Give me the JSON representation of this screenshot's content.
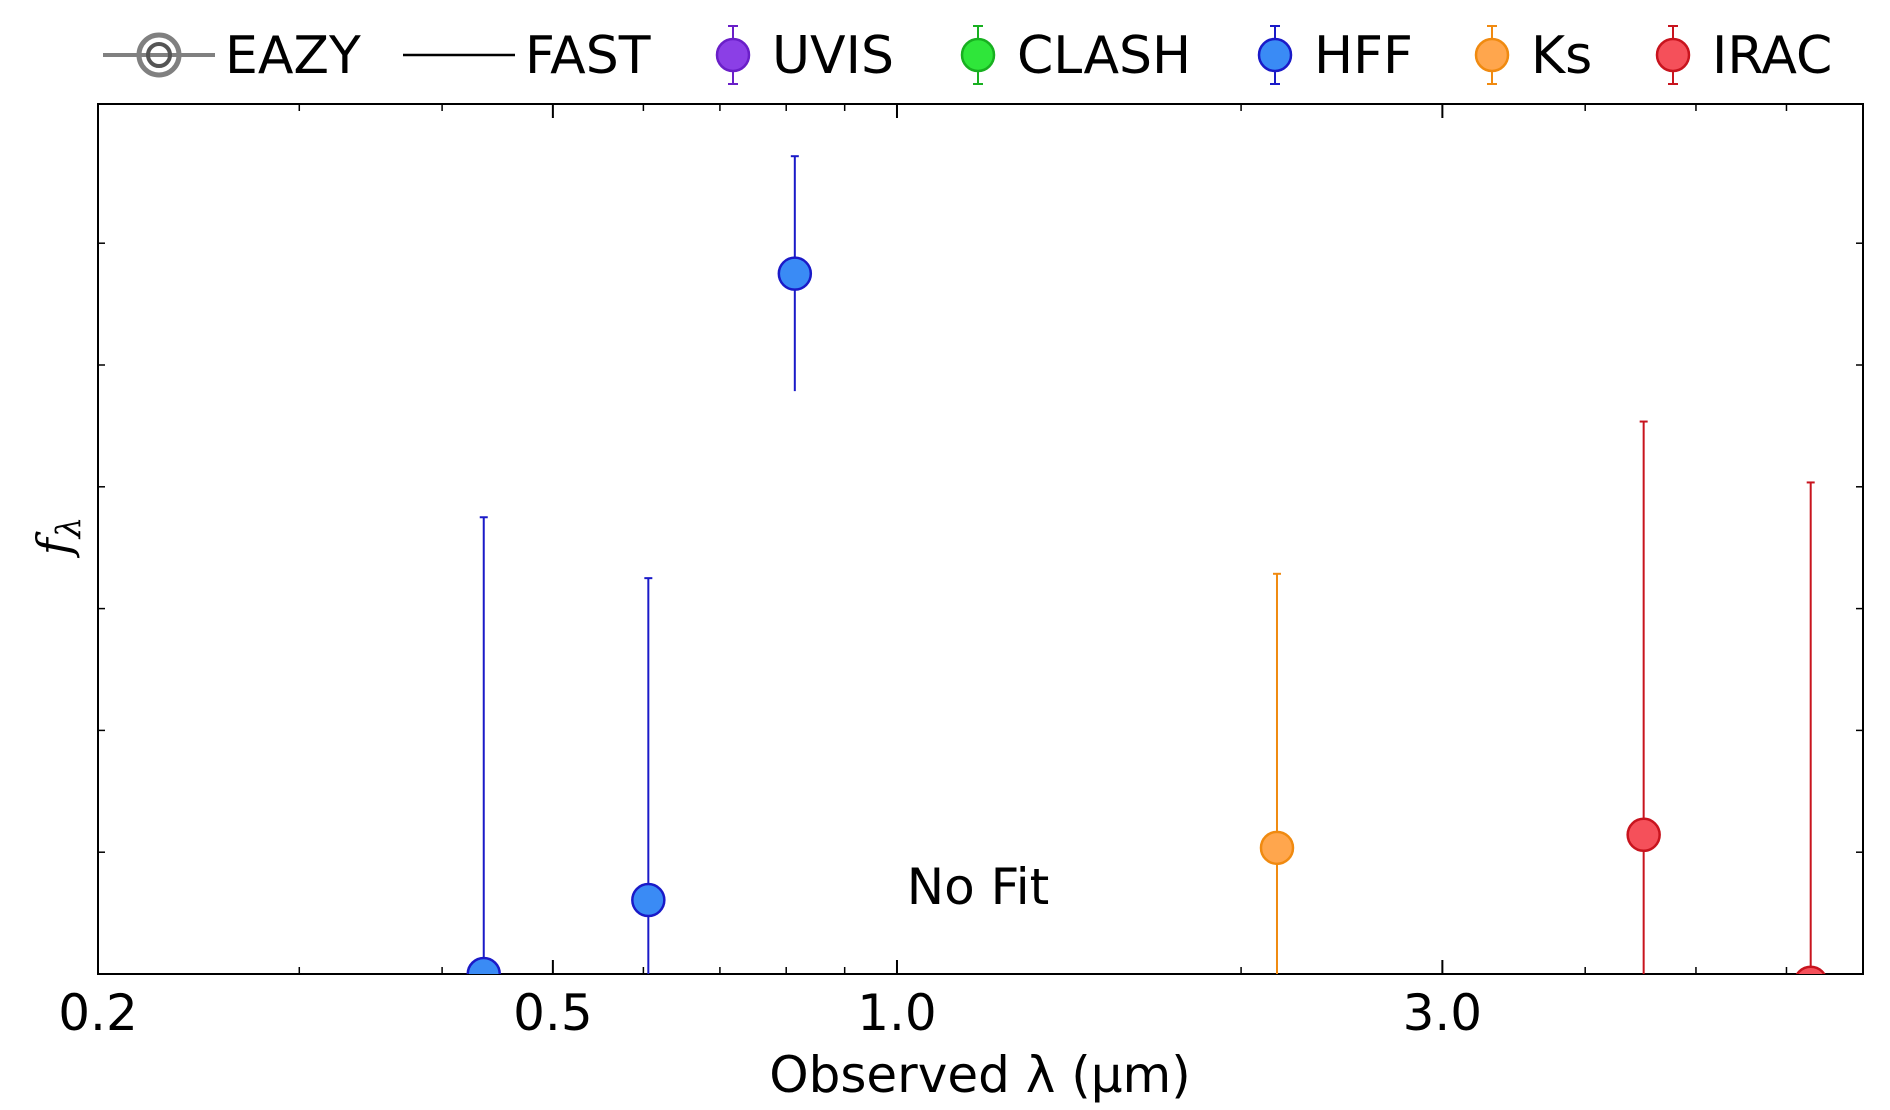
{
  "chart_data": {
    "type": "scatter",
    "xlabel": "Observed λ (μm)",
    "ylabel": "f_λ",
    "xscale": "log",
    "xlim": [
      0.2,
      7.0
    ],
    "ylim": [
      0,
      1.0
    ],
    "xticks": [
      0.2,
      0.5,
      1.0,
      3.0
    ],
    "xtick_labels": [
      "0.2",
      "0.5",
      "1.0",
      "3.0"
    ],
    "yticks": [
      0.14,
      0.28,
      0.42,
      0.56,
      0.7,
      0.84
    ],
    "ytick_labels_shown": false,
    "grid": false,
    "legend_position": "top (above plot)",
    "annotation": "No Fit",
    "legend": [
      {
        "label": "EAZY",
        "style": "line-marker",
        "color": "#808080"
      },
      {
        "label": "FAST",
        "style": "line",
        "color": "#000000"
      },
      {
        "label": "UVIS",
        "style": "errorbar-marker",
        "color": "#8b3fe6",
        "edge": "#6a1fc8"
      },
      {
        "label": "CLASH",
        "style": "errorbar-marker",
        "color": "#2fe63a",
        "edge": "#18b020"
      },
      {
        "label": "HFF",
        "style": "errorbar-marker",
        "color": "#3a8bf5",
        "edge": "#1a1ac8"
      },
      {
        "label": "Ks",
        "style": "errorbar-marker",
        "color": "#ffa64d",
        "edge": "#f08a10"
      },
      {
        "label": "IRAC",
        "style": "errorbar-marker",
        "color": "#f5505a",
        "edge": "#c8141e"
      }
    ],
    "series": [
      {
        "name": "HFF",
        "color": "#3a8bf5",
        "edge": "#1a1ac8",
        "points": [
          {
            "x": 0.435,
            "y": 0.0,
            "yerr_low": 0.0,
            "yerr_high": 0.525
          },
          {
            "x": 0.606,
            "y": 0.085,
            "yerr_low": 0.085,
            "yerr_high": 0.37
          },
          {
            "x": 0.814,
            "y": 0.805,
            "yerr_low": 0.135,
            "yerr_high": 0.135
          }
        ]
      },
      {
        "name": "Ks",
        "color": "#ffa64d",
        "edge": "#f08a10",
        "points": [
          {
            "x": 2.15,
            "y": 0.145,
            "yerr_low": 0.145,
            "yerr_high": 0.315
          }
        ]
      },
      {
        "name": "IRAC",
        "color": "#f5505a",
        "edge": "#c8141e",
        "points": [
          {
            "x": 4.5,
            "y": 0.16,
            "yerr_low": 0.16,
            "yerr_high": 0.475
          },
          {
            "x": 6.3,
            "y": -0.01,
            "yerr_low": 0.0,
            "yerr_high": 0.575
          }
        ]
      }
    ]
  }
}
